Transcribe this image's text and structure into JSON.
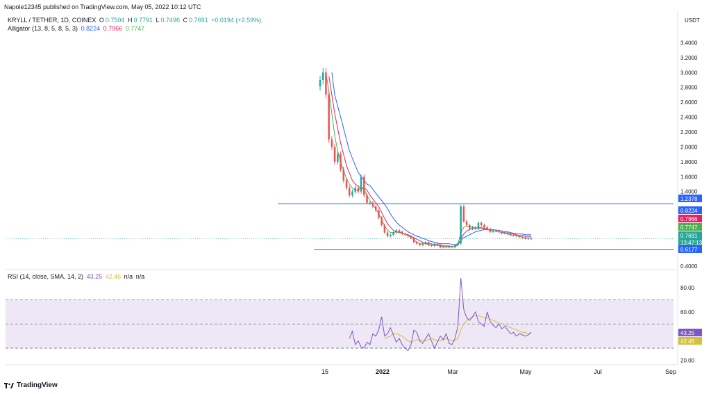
{
  "header": {
    "published": "Napole12345 published on TradingView.com, May 05, 2022 10:12 UTC"
  },
  "legend": {
    "symbol": "KRYLL / TETHER, 1D, COINEX",
    "open_label": "O",
    "open": "0.7504",
    "high_label": "H",
    "high": "0.7791",
    "low_label": "L",
    "low": "0.7496",
    "close_label": "C",
    "close": "0.7691",
    "change": "+0.0194 (+2.59%)",
    "alligator_name": "Alligator (13, 8, 5, 8, 5, 3)",
    "jaw": "0.8224",
    "teeth": "0.7966",
    "lips": "0.7747"
  },
  "rsi_legend": {
    "name": "RSI (14, close, SMA, 14, 2)",
    "rsi": "43.25",
    "sma": "42.46",
    "na1": "n/a",
    "na2": "n/a"
  },
  "footer": {
    "brand": "TradingView"
  },
  "colors": {
    "up": "#26a69a",
    "down": "#ef5350",
    "jaw": "#2962ff",
    "teeth": "#e91e63",
    "lips": "#4caf50",
    "hline": "#2962ff",
    "rsi": "#7e57c2",
    "rsi_ma": "#d4c03b",
    "rsi_band": "#ede7f6"
  },
  "chart_data": [
    {
      "type": "line",
      "title": "KRYLL / TETHER, 1D, COINEX",
      "currency": "USDT",
      "x_ticks": [
        "15",
        "2022",
        "Mar",
        "May",
        "Jul",
        "Sep"
      ],
      "y_ticks": [
        "3.4000",
        "3.2000",
        "3.0000",
        "2.8000",
        "2.6000",
        "2.4000",
        "2.2000",
        "2.0000",
        "1.8000",
        "1.6000",
        "1.4000",
        "0.4000"
      ],
      "ylim": [
        0.38,
        3.6
      ],
      "x": [
        "2021-12-13",
        "2021-12-15",
        "2021-12-17",
        "2021-12-19",
        "2021-12-21",
        "2021-12-23",
        "2021-12-25",
        "2021-12-27",
        "2021-12-29",
        "2021-12-31",
        "2022-01-02",
        "2022-01-04",
        "2022-01-06",
        "2022-01-08",
        "2022-01-10",
        "2022-01-12",
        "2022-01-14",
        "2022-01-16",
        "2022-01-18",
        "2022-01-20",
        "2022-01-22",
        "2022-01-24",
        "2022-01-26",
        "2022-01-28",
        "2022-01-30",
        "2022-02-01",
        "2022-02-03",
        "2022-02-05",
        "2022-02-07",
        "2022-02-09",
        "2022-02-11",
        "2022-02-13",
        "2022-02-15",
        "2022-02-17",
        "2022-02-19",
        "2022-02-21",
        "2022-02-23",
        "2022-02-25",
        "2022-02-27",
        "2022-03-01",
        "2022-03-03",
        "2022-03-05",
        "2022-03-07",
        "2022-03-09",
        "2022-03-11",
        "2022-03-13",
        "2022-03-15",
        "2022-03-17",
        "2022-03-19",
        "2022-03-21",
        "2022-03-23",
        "2022-03-25",
        "2022-03-27",
        "2022-03-29",
        "2022-03-31",
        "2022-04-02",
        "2022-04-04",
        "2022-04-06",
        "2022-04-08",
        "2022-04-10",
        "2022-04-12",
        "2022-04-14",
        "2022-04-16",
        "2022-04-18",
        "2022-04-20",
        "2022-04-22",
        "2022-04-24",
        "2022-04-26",
        "2022-04-28",
        "2022-04-30",
        "2022-05-02",
        "2022-05-04",
        "2022-05-05"
      ],
      "series": [
        {
          "name": "KRYLL / TETHER",
          "values": [
            2.9,
            3.0,
            2.7,
            2.1,
            2.0,
            1.8,
            1.9,
            1.7,
            1.55,
            1.45,
            1.35,
            1.4,
            1.45,
            1.4,
            1.6,
            1.35,
            1.25,
            1.25,
            1.2,
            1.15,
            1.05,
            0.95,
            0.85,
            0.8,
            0.82,
            0.85,
            0.88,
            0.86,
            0.83,
            0.82,
            0.8,
            0.78,
            0.72,
            0.7,
            0.68,
            0.7,
            0.72,
            0.68,
            0.67,
            0.7,
            0.68,
            0.65,
            0.66,
            0.65,
            0.66,
            0.65,
            0.68,
            0.7,
            1.2,
            1.0,
            0.95,
            0.9,
            0.92,
            0.9,
            0.98,
            0.95,
            0.92,
            0.9,
            0.86,
            0.88,
            0.87,
            0.86,
            0.84,
            0.85,
            0.83,
            0.82,
            0.81,
            0.8,
            0.79,
            0.78,
            0.77,
            0.77,
            0.7691
          ]
        },
        {
          "name": "Jaw",
          "values": [
            null,
            null,
            null,
            null,
            3.0,
            2.7,
            2.55,
            2.4,
            2.25,
            2.1,
            1.95,
            1.85,
            1.75,
            1.66,
            1.6,
            1.55,
            1.5,
            1.48,
            1.43,
            1.38,
            1.33,
            1.28,
            1.23,
            1.17,
            1.1,
            1.04,
            0.99,
            0.95,
            0.92,
            0.89,
            0.86,
            0.84,
            0.82,
            0.8,
            0.79,
            0.77,
            0.76,
            0.74,
            0.73,
            0.72,
            0.71,
            0.7,
            0.7,
            0.7,
            0.7,
            0.69,
            0.69,
            0.7,
            0.75,
            0.78,
            0.8,
            0.82,
            0.84,
            0.86,
            0.87,
            0.88,
            0.89,
            0.89,
            0.89,
            0.89,
            0.88,
            0.88,
            0.87,
            0.86,
            0.86,
            0.85,
            0.84,
            0.84,
            0.83,
            0.83,
            0.82,
            0.82,
            0.8224
          ]
        },
        {
          "name": "Teeth",
          "values": [
            null,
            null,
            null,
            2.95,
            2.7,
            2.45,
            2.25,
            2.05,
            1.9,
            1.75,
            1.65,
            1.55,
            1.5,
            1.47,
            1.45,
            1.45,
            1.42,
            1.35,
            1.3,
            1.25,
            1.2,
            1.12,
            1.04,
            0.97,
            0.92,
            0.88,
            0.86,
            0.85,
            0.84,
            0.83,
            0.82,
            0.8,
            0.78,
            0.76,
            0.74,
            0.72,
            0.71,
            0.7,
            0.7,
            0.69,
            0.69,
            0.68,
            0.67,
            0.67,
            0.67,
            0.66,
            0.67,
            0.68,
            0.76,
            0.83,
            0.87,
            0.89,
            0.9,
            0.91,
            0.91,
            0.91,
            0.9,
            0.89,
            0.88,
            0.87,
            0.87,
            0.86,
            0.85,
            0.85,
            0.84,
            0.83,
            0.83,
            0.82,
            0.81,
            0.81,
            0.8,
            0.8,
            0.7966
          ]
        },
        {
          "name": "Lips",
          "values": [
            null,
            null,
            3.0,
            2.75,
            2.45,
            2.15,
            1.95,
            1.8,
            1.68,
            1.58,
            1.5,
            1.45,
            1.42,
            1.42,
            1.45,
            1.43,
            1.35,
            1.28,
            1.22,
            1.17,
            1.1,
            1.02,
            0.94,
            0.88,
            0.85,
            0.85,
            0.86,
            0.86,
            0.85,
            0.83,
            0.81,
            0.78,
            0.75,
            0.72,
            0.7,
            0.7,
            0.7,
            0.69,
            0.68,
            0.68,
            0.68,
            0.67,
            0.66,
            0.66,
            0.66,
            0.66,
            0.67,
            0.69,
            0.85,
            0.92,
            0.94,
            0.93,
            0.92,
            0.91,
            0.92,
            0.92,
            0.91,
            0.9,
            0.88,
            0.87,
            0.87,
            0.86,
            0.85,
            0.84,
            0.83,
            0.82,
            0.81,
            0.81,
            0.8,
            0.79,
            0.78,
            0.78,
            0.7747
          ]
        }
      ],
      "horizontal_lines": [
        1.2378,
        0.6177
      ],
      "price_labels": [
        {
          "text": "1.2378",
          "color": "#2962ff"
        },
        {
          "text": "0.8224",
          "color": "#2962ff"
        },
        {
          "text": "0.7966",
          "color": "#e91e63"
        },
        {
          "text": "0.7747",
          "color": "#4caf50"
        },
        {
          "text": "0.7691",
          "color": "#26a69a"
        },
        {
          "text": "13:47:13",
          "color": "#26a69a"
        },
        {
          "text": "0.6177",
          "color": "#2962ff"
        }
      ]
    },
    {
      "type": "line",
      "title": "RSI (14, close, SMA, 14, 2)",
      "y_ticks": [
        "80.00",
        "60.00",
        "20.00"
      ],
      "ylim": [
        18,
        88
      ],
      "bands": [
        70,
        50,
        30
      ],
      "x": [
        "2021-12-13",
        "2021-12-15",
        "2021-12-17",
        "2021-12-19",
        "2021-12-21",
        "2021-12-23",
        "2021-12-25",
        "2021-12-27",
        "2021-12-29",
        "2021-12-31",
        "2022-01-02",
        "2022-01-04",
        "2022-01-06",
        "2022-01-08",
        "2022-01-10",
        "2022-01-12",
        "2022-01-14",
        "2022-01-16",
        "2022-01-18",
        "2022-01-20",
        "2022-01-22",
        "2022-01-24",
        "2022-01-26",
        "2022-01-28",
        "2022-01-30",
        "2022-02-01",
        "2022-02-03",
        "2022-02-05",
        "2022-02-07",
        "2022-02-09",
        "2022-02-11",
        "2022-02-13",
        "2022-02-15",
        "2022-02-17",
        "2022-02-19",
        "2022-02-21",
        "2022-02-23",
        "2022-02-25",
        "2022-02-27",
        "2022-03-01",
        "2022-03-03",
        "2022-03-05",
        "2022-03-07",
        "2022-03-09",
        "2022-03-11",
        "2022-03-13",
        "2022-03-15",
        "2022-03-17",
        "2022-03-19",
        "2022-03-21",
        "2022-03-23",
        "2022-03-25",
        "2022-03-27",
        "2022-03-29",
        "2022-03-31",
        "2022-04-02",
        "2022-04-04",
        "2022-04-06",
        "2022-04-08",
        "2022-04-10",
        "2022-04-12",
        "2022-04-14",
        "2022-04-16",
        "2022-04-18",
        "2022-04-20",
        "2022-04-22",
        "2022-04-24",
        "2022-04-26",
        "2022-04-28",
        "2022-04-30",
        "2022-05-02",
        "2022-05-04",
        "2022-05-05"
      ],
      "series": [
        {
          "name": "RSI",
          "values": [
            null,
            null,
            null,
            null,
            null,
            null,
            null,
            null,
            null,
            null,
            38,
            44,
            33,
            36,
            31,
            30,
            35,
            33,
            42,
            40,
            45,
            56,
            40,
            42,
            47,
            41,
            35,
            38,
            33,
            30,
            28,
            33,
            45,
            43,
            36,
            34,
            38,
            42,
            36,
            30,
            35,
            40,
            37,
            42,
            34,
            33,
            38,
            48,
            88,
            62,
            55,
            53,
            56,
            60,
            52,
            50,
            48,
            60,
            52,
            49,
            47,
            50,
            46,
            48,
            45,
            42,
            43,
            40,
            42,
            41,
            40,
            41,
            43.25
          ]
        },
        {
          "name": "RSI-based MA",
          "values": [
            null,
            null,
            null,
            null,
            null,
            null,
            null,
            null,
            null,
            null,
            null,
            null,
            null,
            null,
            null,
            null,
            null,
            null,
            null,
            null,
            null,
            null,
            38,
            39,
            40,
            42,
            42,
            41,
            40,
            38,
            36,
            35,
            36,
            37,
            37,
            36,
            36,
            37,
            38,
            37,
            36,
            36,
            37,
            38,
            37,
            36,
            36,
            38,
            45,
            50,
            53,
            55,
            56,
            57,
            57,
            56,
            55,
            55,
            54,
            53,
            52,
            51,
            50,
            49,
            48,
            47,
            46,
            45,
            44,
            43,
            43,
            42,
            42.46
          ]
        }
      ],
      "price_labels": [
        {
          "text": "43.25",
          "color": "#7e57c2"
        },
        {
          "text": "42.46",
          "color": "#d4c03b"
        }
      ]
    }
  ]
}
